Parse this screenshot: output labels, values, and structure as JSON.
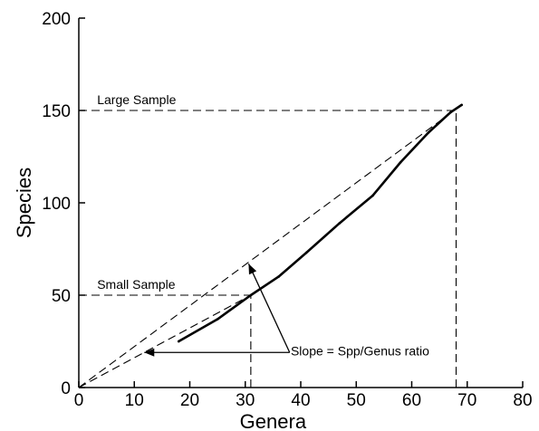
{
  "chart_data": {
    "type": "line",
    "xlabel": "Genera",
    "ylabel": "Species",
    "xlim": [
      0,
      80
    ],
    "ylim": [
      0,
      200
    ],
    "xticks": [
      "0",
      "10",
      "20",
      "30",
      "40",
      "50",
      "60",
      "70",
      "80"
    ],
    "yticks": [
      "0",
      "50",
      "100",
      "150",
      "200"
    ],
    "grid": false,
    "series": [
      {
        "x": [
          18,
          25,
          31,
          36,
          41,
          47,
          53,
          58,
          63,
          67,
          69
        ],
        "y": [
          25,
          37,
          50,
          60,
          73,
          89,
          104,
          122,
          138,
          149,
          153
        ]
      }
    ],
    "reference_lines": [
      {
        "kind": "ratio-line",
        "from": [
          0,
          0
        ],
        "to": [
          69,
          153
        ]
      },
      {
        "kind": "ratio-line",
        "from": [
          0,
          0
        ],
        "to": [
          31,
          50
        ]
      },
      {
        "kind": "horizontal",
        "y": 150,
        "x_to": 68
      },
      {
        "kind": "vertical",
        "x": 68,
        "y_to": 150
      },
      {
        "kind": "horizontal",
        "y": 50,
        "x_to": 31
      },
      {
        "kind": "vertical",
        "x": 31,
        "y_to": 50
      }
    ],
    "annotations": {
      "large_sample": "Large Sample",
      "small_sample": "Small Sample",
      "slope": "Slope = Spp/Genus ratio"
    }
  }
}
